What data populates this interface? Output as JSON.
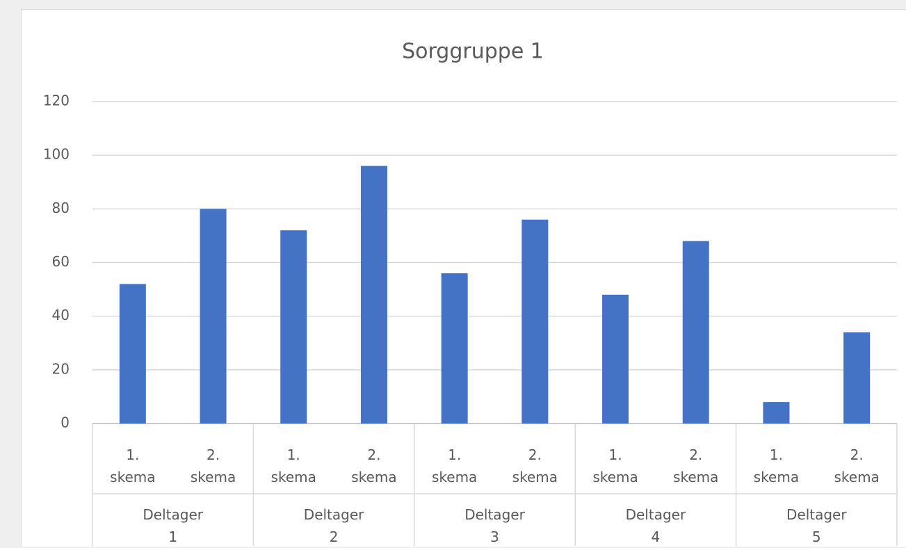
{
  "chart_data": {
    "type": "bar",
    "title": "Sorggruppe 1",
    "categories": [
      "1. skema",
      "2. skema",
      "1. skema",
      "2. skema",
      "1. skema",
      "2. skema",
      "1. skema",
      "2. skema",
      "1. skema",
      "2. skema"
    ],
    "groups": [
      "Deltager 1",
      "Deltager 2",
      "Deltager 3",
      "Deltager 4",
      "Deltager 5"
    ],
    "values": [
      52,
      80,
      72,
      96,
      56,
      76,
      48,
      68,
      8,
      34
    ],
    "color": "#4472c4",
    "ylim": [
      0,
      120
    ],
    "yticks": [
      0,
      20,
      40,
      60,
      80,
      100,
      120
    ],
    "grid": true
  }
}
